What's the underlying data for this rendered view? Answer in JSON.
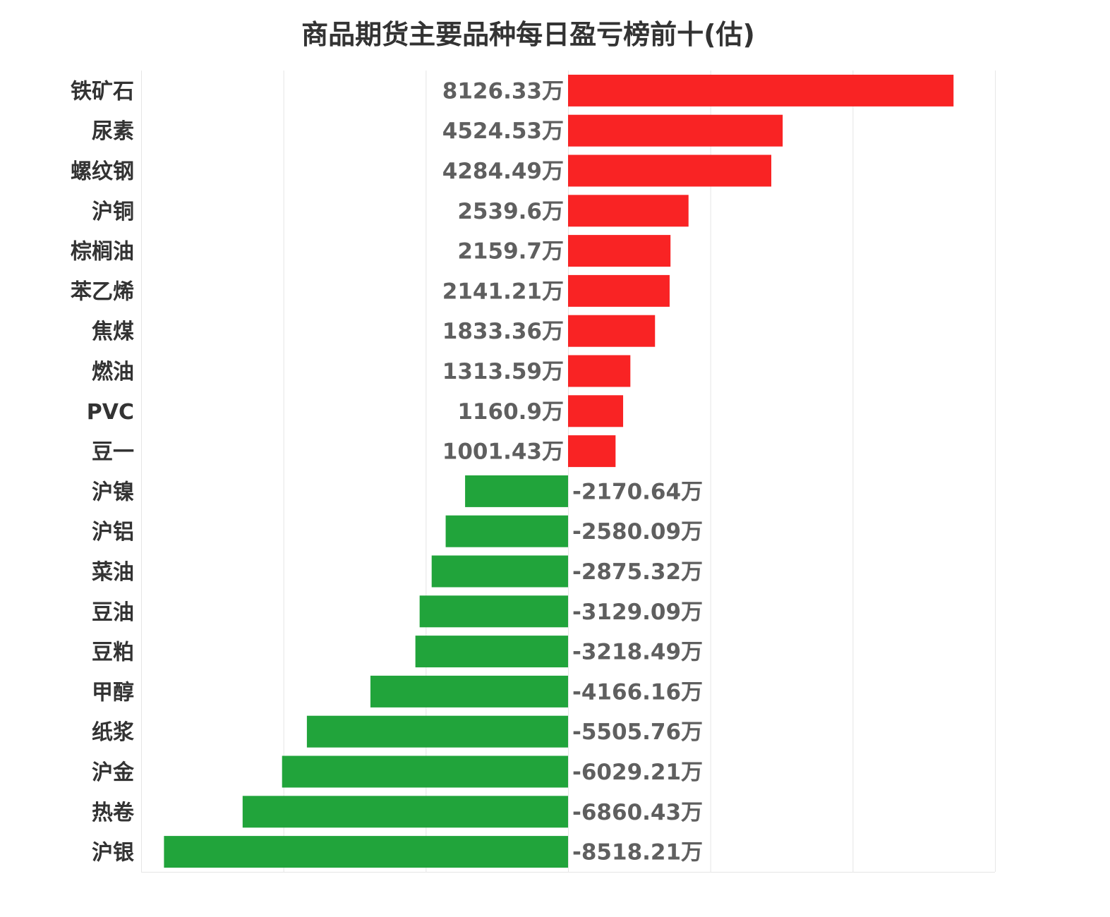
{
  "chart_data": {
    "type": "bar",
    "orientation": "horizontal",
    "title": "商品期货主要品种每日盈亏榜前十(估)",
    "unit_suffix": "万",
    "categories": [
      "铁矿石",
      "尿素",
      "螺纹钢",
      "沪铜",
      "棕榈油",
      "苯乙烯",
      "焦煤",
      "燃油",
      "PVC",
      "豆一",
      "沪镍",
      "沪铝",
      "菜油",
      "豆油",
      "豆粕",
      "甲醇",
      "纸浆",
      "沪金",
      "热卷",
      "沪银"
    ],
    "values": [
      8126.33,
      4524.53,
      4284.49,
      2539.6,
      2159.7,
      2141.21,
      1833.36,
      1313.59,
      1160.9,
      1001.43,
      -2170.64,
      -2580.09,
      -2875.32,
      -3129.09,
      -3218.49,
      -4166.16,
      -5505.76,
      -6029.21,
      -6860.43,
      -8518.21
    ],
    "labels": [
      "8126.33万",
      "4524.53万",
      "4284.49万",
      "2539.6万",
      "2159.7万",
      "2141.21万",
      "1833.36万",
      "1313.59万",
      "1160.9万",
      "1001.43万",
      "-2170.64万",
      "-2580.09万",
      "-2875.32万",
      "-3129.09万",
      "-3218.49万",
      "-4166.16万",
      "-5505.76万",
      "-6029.21万",
      "-6860.43万",
      "-8518.21万"
    ],
    "xlim": [
      -9000,
      9000
    ],
    "xtick_step": 3000,
    "grid": true,
    "legend": "none",
    "colors": {
      "positive": "#f92324",
      "negative": "#21a43b",
      "grid": "#e6e6e6"
    }
  }
}
